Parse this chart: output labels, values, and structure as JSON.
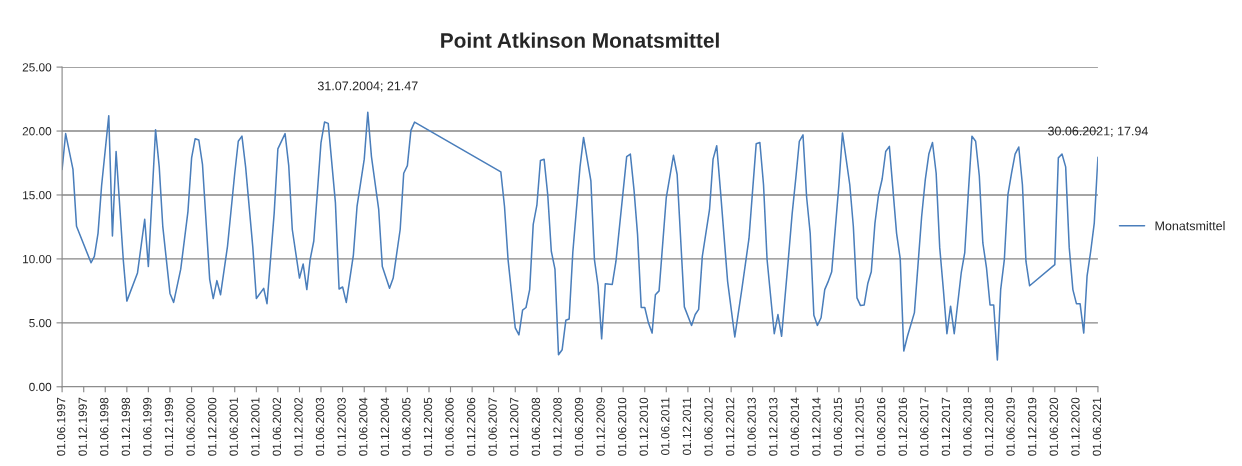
{
  "chart_data": {
    "type": "line",
    "title": "Point Atkinson Monatsmittel",
    "x": [
      "1997-06",
      "1997-07",
      "1997-09",
      "1997-10",
      "1998-02",
      "1998-03",
      "1998-04",
      "1998-05",
      "1998-07",
      "1998-08",
      "1998-09",
      "1998-11",
      "1998-12",
      "1999-03",
      "1999-05",
      "1999-06",
      "1999-08",
      "1999-09",
      "1999-10",
      "1999-12",
      "2000-01",
      "2000-03",
      "2000-05",
      "2000-06",
      "2000-07",
      "2000-08",
      "2000-09",
      "2000-11",
      "2000-12",
      "2001-01",
      "2001-02",
      "2001-04",
      "2001-06",
      "2001-07",
      "2001-08",
      "2001-09",
      "2001-11",
      "2001-12",
      "2002-02",
      "2002-03",
      "2002-05",
      "2002-06",
      "2002-08",
      "2002-09",
      "2002-10",
      "2002-12",
      "2003-01",
      "2003-02",
      "2003-03",
      "2003-04",
      "2003-06",
      "2003-07",
      "2003-08",
      "2003-10",
      "2003-11",
      "2003-12",
      "2004-01",
      "2004-03",
      "2004-04",
      "2004-06",
      "2004-07",
      "2004-08",
      "2004-10",
      "2004-11",
      "2005-01",
      "2005-02",
      "2005-04",
      "2005-05",
      "2005-06",
      "2005-07",
      "2005-08",
      "2007-08",
      "2007-09",
      "2007-10",
      "2007-12",
      "2008-01",
      "2008-02",
      "2008-03",
      "2008-04",
      "2008-05",
      "2008-06",
      "2008-07",
      "2008-08",
      "2008-09",
      "2008-10",
      "2008-11",
      "2008-12",
      "2009-01",
      "2009-02",
      "2009-03",
      "2009-04",
      "2009-06",
      "2009-07",
      "2009-09",
      "2009-10",
      "2009-11",
      "2009-12",
      "2010-01",
      "2010-03",
      "2010-04",
      "2010-07",
      "2010-08",
      "2010-09",
      "2010-10",
      "2010-11",
      "2010-12",
      "2011-01",
      "2011-02",
      "2011-03",
      "2011-04",
      "2011-06",
      "2011-08",
      "2011-09",
      "2011-11",
      "2012-01",
      "2012-02",
      "2012-03",
      "2012-04",
      "2012-06",
      "2012-07",
      "2012-08",
      "2012-09",
      "2012-11",
      "2013-01",
      "2013-03",
      "2013-05",
      "2013-06",
      "2013-07",
      "2013-08",
      "2013-09",
      "2013-10",
      "2013-12",
      "2014-01",
      "2014-02",
      "2014-04",
      "2014-05",
      "2014-06",
      "2014-07",
      "2014-08",
      "2014-09",
      "2014-10",
      "2014-11",
      "2014-12",
      "2015-01",
      "2015-02",
      "2015-03",
      "2015-04",
      "2015-06",
      "2015-07",
      "2015-09",
      "2015-10",
      "2015-11",
      "2015-12",
      "2016-01",
      "2016-02",
      "2016-03",
      "2016-04",
      "2016-05",
      "2016-06",
      "2016-07",
      "2016-08",
      "2016-10",
      "2016-11",
      "2016-12",
      "2017-01",
      "2017-03",
      "2017-05",
      "2017-06",
      "2017-07",
      "2017-08",
      "2017-09",
      "2017-10",
      "2017-11",
      "2017-12",
      "2018-01",
      "2018-02",
      "2018-04",
      "2018-05",
      "2018-06",
      "2018-07",
      "2018-08",
      "2018-09",
      "2018-10",
      "2018-11",
      "2018-12",
      "2019-01",
      "2019-02",
      "2019-03",
      "2019-04",
      "2019-05",
      "2019-06",
      "2019-07",
      "2019-08",
      "2019-09",
      "2019-10",
      "2019-11",
      "2020-06",
      "2020-07",
      "2020-08",
      "2020-09",
      "2020-10",
      "2020-11",
      "2020-12",
      "2021-01",
      "2021-02",
      "2021-03",
      "2021-04",
      "2021-05",
      "2021-06"
    ],
    "series": [
      {
        "name": "Monatsmittel",
        "color": "#4a7ebb",
        "values": [
          17.0,
          19.8,
          17.0,
          12.55,
          9.7,
          10.2,
          12.0,
          15.7,
          21.2,
          11.8,
          18.4,
          9.9,
          6.7,
          8.9,
          13.1,
          9.4,
          20.1,
          17.2,
          12.55,
          7.3,
          6.6,
          9.2,
          13.7,
          17.9,
          19.4,
          19.3,
          17.4,
          8.4,
          6.9,
          8.3,
          7.2,
          11.0,
          16.7,
          19.2,
          19.6,
          17.2,
          10.9,
          6.9,
          7.7,
          6.5,
          13.6,
          18.6,
          19.8,
          17.3,
          12.3,
          8.5,
          9.6,
          7.6,
          9.95,
          11.4,
          19.1,
          20.7,
          20.6,
          14.4,
          7.65,
          7.8,
          6.6,
          10.3,
          14.1,
          17.8,
          21.47,
          18.0,
          13.9,
          9.4,
          7.7,
          8.5,
          12.3,
          16.7,
          17.3,
          20.05,
          20.7,
          16.8,
          14.1,
          9.95,
          4.6,
          4.06,
          6.0,
          6.2,
          7.6,
          12.7,
          14.2,
          17.7,
          17.8,
          15.0,
          10.6,
          9.2,
          2.5,
          2.9,
          5.2,
          5.3,
          10.5,
          17.2,
          19.5,
          16.1,
          9.95,
          7.9,
          3.75,
          8.05,
          8.0,
          9.8,
          18.0,
          18.2,
          15.4,
          11.9,
          6.2,
          6.2,
          5.0,
          4.2,
          7.2,
          7.5,
          14.8,
          18.1,
          16.6,
          6.25,
          4.8,
          5.65,
          6.05,
          10.2,
          13.85,
          17.8,
          18.85,
          15.4,
          8.25,
          3.9,
          7.6,
          11.6,
          15.4,
          19.0,
          19.1,
          15.8,
          9.95,
          4.15,
          5.65,
          3.95,
          10.2,
          13.5,
          16.3,
          19.2,
          19.7,
          14.8,
          12.0,
          5.6,
          4.8,
          5.4,
          7.6,
          8.2,
          9.0,
          15.8,
          19.85,
          15.8,
          12.55,
          6.95,
          6.35,
          6.4,
          8.1,
          9.0,
          12.8,
          15.0,
          16.25,
          18.4,
          18.8,
          12.0,
          10.0,
          2.8,
          3.95,
          5.8,
          13.3,
          16.2,
          18.2,
          19.1,
          16.7,
          10.9,
          7.6,
          4.15,
          6.3,
          4.15,
          8.9,
          10.5,
          15.3,
          19.6,
          19.2,
          16.5,
          11.25,
          9.3,
          6.4,
          6.4,
          2.1,
          7.6,
          9.95,
          15.0,
          16.7,
          18.2,
          18.75,
          15.8,
          9.8,
          7.9,
          9.55,
          17.9,
          18.2,
          17.2,
          10.9,
          7.6,
          6.5,
          6.5,
          4.2,
          8.65,
          10.6,
          12.8,
          17.94
        ]
      }
    ],
    "annotations": [
      {
        "text": "31.07.2004; 21.47",
        "x": "2004-07",
        "y": 21.47
      },
      {
        "text": "30.06.2021; 17.94",
        "x": "2021-06",
        "y": 17.94
      }
    ],
    "xlim": [
      "1997-06-01",
      "2021-06-01"
    ],
    "xticks": [
      {
        "value": "1997-06-01",
        "label": "01.06.1997"
      },
      {
        "value": "1997-12-01",
        "label": "01.12.1997"
      },
      {
        "value": "1998-06-01",
        "label": "01.06.1998"
      },
      {
        "value": "1998-12-01",
        "label": "01.12.1998"
      },
      {
        "value": "1999-06-01",
        "label": "01.06.1999"
      },
      {
        "value": "1999-12-01",
        "label": "01.12.1999"
      },
      {
        "value": "2000-06-01",
        "label": "01.06.2000"
      },
      {
        "value": "2000-12-01",
        "label": "01.12.2000"
      },
      {
        "value": "2001-06-01",
        "label": "01.06.2001"
      },
      {
        "value": "2001-12-01",
        "label": "01.12.2001"
      },
      {
        "value": "2002-06-01",
        "label": "01.06.2002"
      },
      {
        "value": "2002-12-01",
        "label": "01.12.2002"
      },
      {
        "value": "2003-06-01",
        "label": "01.06.2003"
      },
      {
        "value": "2003-12-01",
        "label": "01.12.2003"
      },
      {
        "value": "2004-06-01",
        "label": "01.06.2004"
      },
      {
        "value": "2004-12-01",
        "label": "01.12.2004"
      },
      {
        "value": "2005-06-01",
        "label": "01.06.2005"
      },
      {
        "value": "2005-12-01",
        "label": "01.12.2005"
      },
      {
        "value": "2006-06-01",
        "label": "01.06.2006"
      },
      {
        "value": "2006-12-01",
        "label": "01.12.2006"
      },
      {
        "value": "2007-06-01",
        "label": "01.06.2007"
      },
      {
        "value": "2007-12-01",
        "label": "01.12.2007"
      },
      {
        "value": "2008-06-01",
        "label": "01.06.2008"
      },
      {
        "value": "2008-12-01",
        "label": "01.12.2008"
      },
      {
        "value": "2009-06-01",
        "label": "01.06.2009"
      },
      {
        "value": "2009-12-01",
        "label": "01.12.2009"
      },
      {
        "value": "2010-06-01",
        "label": "01.06.2010"
      },
      {
        "value": "2010-12-01",
        "label": "01.12.2010"
      },
      {
        "value": "2011-06-01",
        "label": "01.06.2011"
      },
      {
        "value": "2011-12-01",
        "label": "01.12.2011"
      },
      {
        "value": "2012-06-01",
        "label": "01.06.2012"
      },
      {
        "value": "2012-12-01",
        "label": "01.12.2012"
      },
      {
        "value": "2013-06-01",
        "label": "01.06.2013"
      },
      {
        "value": "2013-12-01",
        "label": "01.12.2013"
      },
      {
        "value": "2014-06-01",
        "label": "01.06.2014"
      },
      {
        "value": "2014-12-01",
        "label": "01.12.2014"
      },
      {
        "value": "2015-06-01",
        "label": "01.06.2015"
      },
      {
        "value": "2015-12-01",
        "label": "01.12.2015"
      },
      {
        "value": "2016-06-01",
        "label": "01.06.2016"
      },
      {
        "value": "2016-12-01",
        "label": "01.12.2016"
      },
      {
        "value": "2017-06-01",
        "label": "01.06.2017"
      },
      {
        "value": "2017-12-01",
        "label": "01.12.2017"
      },
      {
        "value": "2018-06-01",
        "label": "01.06.2018"
      },
      {
        "value": "2018-12-01",
        "label": "01.12.2018"
      },
      {
        "value": "2019-06-01",
        "label": "01.06.2019"
      },
      {
        "value": "2019-12-01",
        "label": "01.12.2019"
      },
      {
        "value": "2020-06-01",
        "label": "01.06.2020"
      },
      {
        "value": "2020-12-01",
        "label": "01.12.2020"
      },
      {
        "value": "2021-06-01",
        "label": "01.06.2021"
      }
    ],
    "ylim": [
      0,
      25
    ],
    "yticks": [
      {
        "value": 0,
        "label": "0.00"
      },
      {
        "value": 5,
        "label": "5.00"
      },
      {
        "value": 10,
        "label": "10.00"
      },
      {
        "value": 15,
        "label": "15.00"
      },
      {
        "value": 20,
        "label": "20.00"
      },
      {
        "value": 25,
        "label": "25.00"
      }
    ],
    "grid": "y",
    "legend": "right",
    "marker": "none",
    "line_style": "solid"
  }
}
